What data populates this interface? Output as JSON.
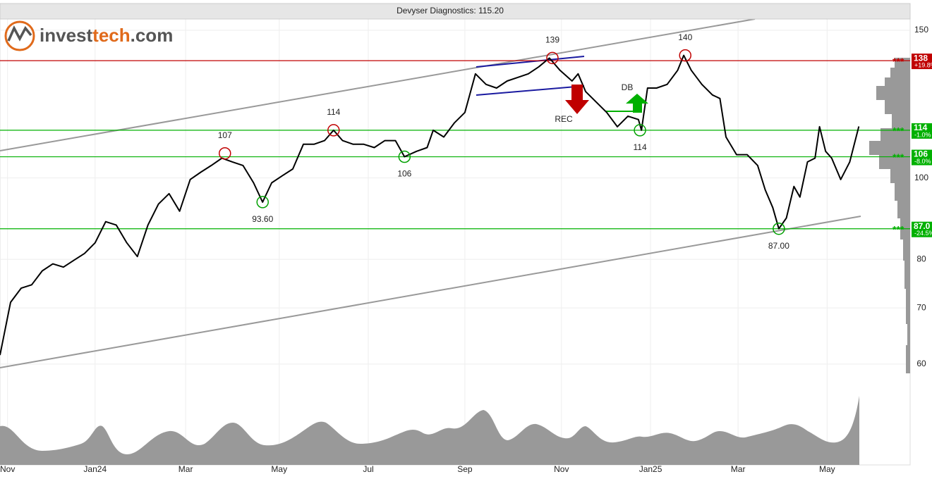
{
  "chart_data": {
    "type": "line",
    "title": "Devyser Diagnostics: 115.20",
    "logo": [
      "invest",
      "tech",
      ".com"
    ],
    "yscale": "log",
    "grid": true,
    "color": "#000000",
    "x": [
      0,
      7,
      14,
      21,
      28,
      35,
      42,
      49,
      56,
      63,
      70,
      77,
      84,
      91,
      98,
      105,
      112,
      119,
      126,
      133,
      140,
      147,
      154,
      161,
      168,
      174,
      180,
      187,
      194,
      201,
      208,
      215,
      221,
      227,
      234,
      241,
      248,
      255,
      262,
      268,
      276,
      283,
      287,
      294,
      301,
      308,
      315,
      322,
      329,
      336,
      343,
      350,
      357,
      364,
      371,
      379,
      383,
      388,
      395,
      402,
      409,
      416,
      423,
      425,
      429,
      435,
      442,
      449,
      453,
      458,
      465,
      472,
      477,
      481,
      488,
      495,
      502,
      507,
      512,
      516,
      521,
      526,
      530,
      535,
      540,
      543,
      547,
      551,
      557,
      563,
      569
    ],
    "values": [
      61.5,
      71.1,
      73.9,
      74.6,
      77.5,
      79.0,
      78.3,
      79.8,
      81.3,
      83.7,
      88.7,
      87.9,
      83.7,
      80.6,
      87.9,
      93.1,
      95.8,
      91.3,
      99.6,
      101.6,
      103.5,
      105.6,
      104.5,
      103.5,
      98.7,
      93.6,
      98.7,
      100.6,
      102.5,
      109.7,
      109.7,
      110.8,
      114,
      110.8,
      109.7,
      109.7,
      108.7,
      110.8,
      110.8,
      106,
      107.6,
      108.7,
      114.0,
      111.9,
      116.3,
      119.7,
      133.1,
      129.3,
      128.0,
      130.5,
      131.8,
      133.1,
      135.7,
      139,
      134.4,
      130.5,
      133.1,
      126.8,
      123.2,
      119.7,
      115.1,
      118.5,
      117.4,
      114,
      128.0,
      128.0,
      129.3,
      134.4,
      140,
      134.4,
      129.3,
      125.6,
      124.4,
      111.9,
      106.6,
      106.6,
      103.5,
      96.8,
      92.2,
      87,
      89.6,
      97.7,
      94.9,
      104.5,
      105.6,
      115.1,
      107.6,
      105.6,
      99.6,
      104.5,
      115.2
    ],
    "xlim": [
      0,
      603
    ],
    "xticks": [
      {
        "value": 5,
        "label": "Nov"
      },
      {
        "value": 63,
        "label": "Jan24"
      },
      {
        "value": 123,
        "label": "Mar"
      },
      {
        "value": 185,
        "label": "May"
      },
      {
        "value": 244,
        "label": "Jul"
      },
      {
        "value": 308,
        "label": "Sep"
      },
      {
        "value": 372,
        "label": "Nov"
      },
      {
        "value": 431,
        "label": "Jan25"
      },
      {
        "value": 489,
        "label": "Mar"
      },
      {
        "value": 548,
        "label": "May"
      }
    ],
    "ylim": [
      45.5,
      154.7
    ],
    "yticks": [
      60,
      70,
      80,
      100,
      150
    ],
    "annotations": [
      {
        "x": 149,
        "value": 107,
        "color": "#c00000"
      },
      {
        "x": 221,
        "value": 114,
        "color": "#c00000"
      },
      {
        "x": 174,
        "value": 93.6,
        "label": "93.60",
        "color": "#00a000"
      },
      {
        "x": 268,
        "value": 106,
        "color": "#00a000"
      },
      {
        "x": 366,
        "value": 139,
        "color": "#c00000"
      },
      {
        "x": 424,
        "value": 114,
        "color": "#00a000"
      },
      {
        "x": 454,
        "value": 140,
        "color": "#c00000"
      },
      {
        "x": 516,
        "value": 87,
        "label": "87.00",
        "color": "#00a000"
      }
    ],
    "levels": [
      {
        "value": 138,
        "stars": "***",
        "change": "+19.8%",
        "color": "#c00000"
      },
      {
        "value": 114,
        "stars": "***",
        "change": "-1.0%",
        "color": "#00b000"
      },
      {
        "value": 106,
        "stars": "***",
        "change": "-8.0%",
        "color": "#00b000"
      },
      {
        "value": 87,
        "label": "87.0",
        "stars": "***",
        "change": "-24.5%",
        "color": "#00b000"
      }
    ],
    "signals": [
      "REC",
      "DB"
    ]
  }
}
